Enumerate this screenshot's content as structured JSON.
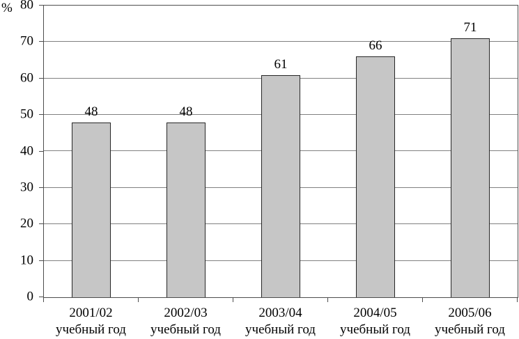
{
  "chart_data": {
    "type": "bar",
    "title": "",
    "xlabel": "",
    "ylabel": "%",
    "categories": [
      "2001/02",
      "2002/03",
      "2003/04",
      "2004/05",
      "2005/06"
    ],
    "category_line2": "учебный год",
    "values": [
      48,
      48,
      61,
      66,
      71
    ],
    "data_labels": [
      "48",
      "48",
      "61",
      "66",
      "71"
    ],
    "ylim": [
      0,
      80
    ],
    "yticks": [
      0,
      10,
      20,
      30,
      40,
      50,
      60,
      70,
      80
    ],
    "ytick_step": 10,
    "grid": "horizontal",
    "legend": "none",
    "data_labels_shown": true,
    "colors": {
      "background": "#ffffff",
      "bar_fill": "#c6c6c6",
      "bar_border": "#262626",
      "gridline": "#808080",
      "axis": "#4d4d4d",
      "text": "#000000"
    }
  }
}
